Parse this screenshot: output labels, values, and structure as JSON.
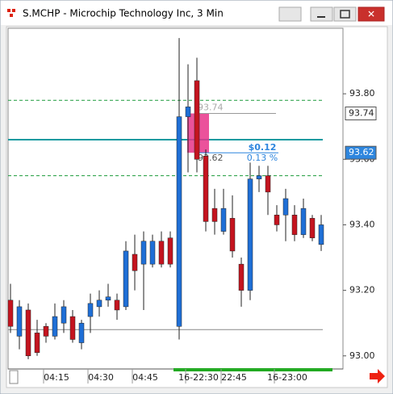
{
  "window_title": "S.MCHP - Microchip Technology Inc, 3 Min",
  "chart_data": {
    "type": "candlestick",
    "up_color": "#1f6fd6",
    "down_color": "#c4141f",
    "categories": [
      null,
      null,
      null,
      null,
      null,
      "04:15",
      null,
      null,
      null,
      null,
      "04:30",
      null,
      null,
      null,
      null,
      "04:45",
      null,
      null,
      null,
      null,
      null,
      "16-22:30",
      null,
      null,
      null,
      "22:45",
      null,
      null,
      null,
      null,
      null,
      "16-23:00",
      null,
      null,
      null,
      null
    ],
    "open": [
      93.17,
      93.06,
      93.14,
      93.07,
      93.09,
      93.06,
      93.1,
      93.12,
      93.04,
      93.12,
      93.15,
      93.17,
      93.17,
      93.15,
      93.31,
      93.28,
      93.28,
      93.35,
      93.36,
      93.09,
      93.73,
      93.84,
      93.61,
      93.45,
      93.38,
      93.42,
      93.28,
      93.2,
      93.54,
      93.55,
      93.43,
      93.43,
      93.43,
      93.37,
      93.42,
      93.34
    ],
    "high": [
      93.22,
      93.17,
      93.16,
      93.11,
      93.1,
      93.16,
      93.17,
      93.14,
      93.11,
      93.19,
      93.2,
      93.22,
      93.19,
      93.35,
      93.37,
      93.38,
      93.37,
      93.38,
      93.38,
      93.97,
      93.89,
      93.91,
      93.63,
      93.51,
      93.51,
      93.49,
      93.3,
      93.59,
      93.58,
      93.58,
      93.46,
      93.51,
      93.46,
      93.48,
      93.43,
      93.43
    ],
    "low": [
      93.07,
      93.02,
      92.99,
      93.0,
      93.04,
      93.05,
      93.07,
      93.04,
      93.02,
      93.07,
      93.12,
      93.15,
      93.11,
      93.14,
      93.2,
      93.14,
      93.27,
      93.27,
      93.27,
      93.05,
      93.56,
      93.56,
      93.38,
      93.37,
      93.37,
      93.3,
      93.15,
      93.17,
      93.5,
      93.43,
      93.38,
      93.35,
      93.35,
      93.36,
      93.35,
      93.32
    ],
    "close": [
      93.09,
      93.15,
      93.0,
      93.01,
      93.06,
      93.12,
      93.15,
      93.05,
      93.1,
      93.16,
      93.17,
      93.18,
      93.14,
      93.32,
      93.26,
      93.35,
      93.35,
      93.28,
      93.28,
      93.73,
      93.76,
      93.6,
      93.41,
      93.41,
      93.45,
      93.32,
      93.2,
      93.54,
      93.55,
      93.5,
      93.4,
      93.48,
      93.37,
      93.45,
      93.36,
      93.4
    ],
    "ylim": [
      92.96,
      94.0
    ],
    "yticks": [
      {
        "value": 93.0,
        "label": "93.00"
      },
      {
        "value": 93.2,
        "label": "93.20"
      },
      {
        "value": 93.4,
        "label": "93.40"
      },
      {
        "value": 93.6,
        "label": "93.60"
      },
      {
        "value": 93.8,
        "label": "93.80"
      }
    ],
    "price_labels": [
      93.74,
      93.62
    ],
    "dashed_levels": [
      93.78,
      93.55
    ],
    "teal_level": 93.66,
    "gray_level": 93.08,
    "measure": {
      "high": 93.74,
      "low": 93.62,
      "change_label": "$0.12",
      "percent_label": "0.13 %"
    }
  }
}
